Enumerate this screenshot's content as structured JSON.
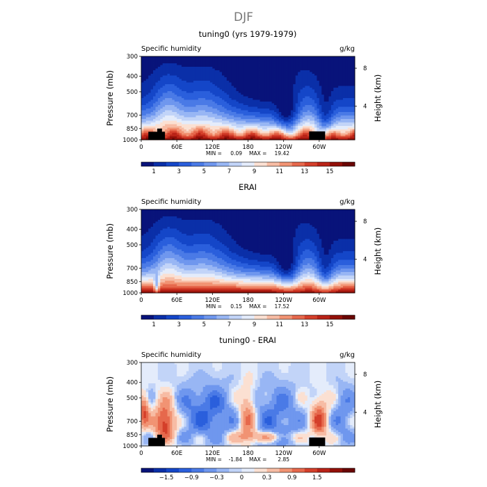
{
  "figure": {
    "title": "DJF"
  },
  "chart_data": [
    {
      "type": "heatmap",
      "title": "tuning0 (yrs 1979-1979)",
      "left_label": "Specific humidity",
      "right_label": "g/kg",
      "ylabel": "Pressure (mb)",
      "y2label": "Height (km)",
      "xticks": [
        "0",
        "60E",
        "120E",
        "180",
        "120W",
        "60W"
      ],
      "xtick_positions_deg": [
        0,
        60,
        120,
        180,
        240,
        300
      ],
      "xlim": [
        0,
        360
      ],
      "yticks": [
        300,
        400,
        500,
        700,
        850,
        1000
      ],
      "ylim": [
        1000,
        300
      ],
      "y2ticks": [
        8,
        4
      ],
      "min_label": "MIN =",
      "min": "0.09",
      "max_label": "MAX =",
      "max": "19.42",
      "colorbar": {
        "labels": [
          "1",
          "3",
          "5",
          "7",
          "9",
          "11",
          "13",
          "15"
        ],
        "levels": [
          0,
          1,
          2,
          3,
          4,
          5,
          6,
          7,
          8,
          9,
          10,
          11,
          12,
          13,
          14,
          15,
          16
        ]
      },
      "field": "humidity_model"
    },
    {
      "type": "heatmap",
      "title": "ERAI",
      "left_label": "Specific humidity",
      "right_label": "g/kg",
      "ylabel": "Pressure (mb)",
      "y2label": "Height (km)",
      "xticks": [
        "0",
        "60E",
        "120E",
        "180",
        "120W",
        "60W"
      ],
      "xtick_positions_deg": [
        0,
        60,
        120,
        180,
        240,
        300
      ],
      "xlim": [
        0,
        360
      ],
      "yticks": [
        300,
        400,
        500,
        700,
        850,
        1000
      ],
      "ylim": [
        1000,
        300
      ],
      "y2ticks": [
        8,
        4
      ],
      "min_label": "MIN =",
      "min": "0.15",
      "max_label": "MAX =",
      "max": "17.52",
      "colorbar": {
        "labels": [
          "1",
          "3",
          "5",
          "7",
          "9",
          "11",
          "13",
          "15"
        ],
        "levels": [
          0,
          1,
          2,
          3,
          4,
          5,
          6,
          7,
          8,
          9,
          10,
          11,
          12,
          13,
          14,
          15,
          16
        ]
      },
      "field": "humidity_obs"
    },
    {
      "type": "heatmap",
      "title": "tuning0 - ERAI",
      "left_label": "Specific humidity",
      "right_label": "g/kg",
      "ylabel": "Pressure (mb)",
      "y2label": "Height (km)",
      "xticks": [
        "0",
        "60E",
        "120E",
        "180",
        "120W",
        "60W"
      ],
      "xtick_positions_deg": [
        0,
        60,
        120,
        180,
        240,
        300
      ],
      "xlim": [
        0,
        360
      ],
      "yticks": [
        300,
        400,
        500,
        700,
        850,
        1000
      ],
      "ylim": [
        1000,
        300
      ],
      "y2ticks": [
        8,
        4
      ],
      "min_label": "MIN =",
      "min": "-1.84",
      "max_label": "MAX =",
      "max": "2.85",
      "colorbar": {
        "labels": [
          "-1.5",
          "-0.9",
          "-0.3",
          "0",
          "0.3",
          "0.9",
          "1.5"
        ],
        "levels": [
          -2.1,
          -1.8,
          -1.5,
          -1.2,
          -0.9,
          -0.6,
          -0.3,
          -0.1,
          0,
          0.1,
          0.3,
          0.6,
          0.9,
          1.2,
          1.5,
          1.8,
          2.1
        ]
      },
      "field": "difference"
    }
  ],
  "palette": [
    "#08137a",
    "#0a2fa8",
    "#1446c8",
    "#2a5fdc",
    "#4a7ae6",
    "#6f97ee",
    "#98b6f4",
    "#c2d4f8",
    "#e4ecfb",
    "#fbe0d2",
    "#f7bca4",
    "#f19373",
    "#e6684c",
    "#d43f2a",
    "#b92317",
    "#931009",
    "#6a0604"
  ],
  "topography_color": "#000000"
}
